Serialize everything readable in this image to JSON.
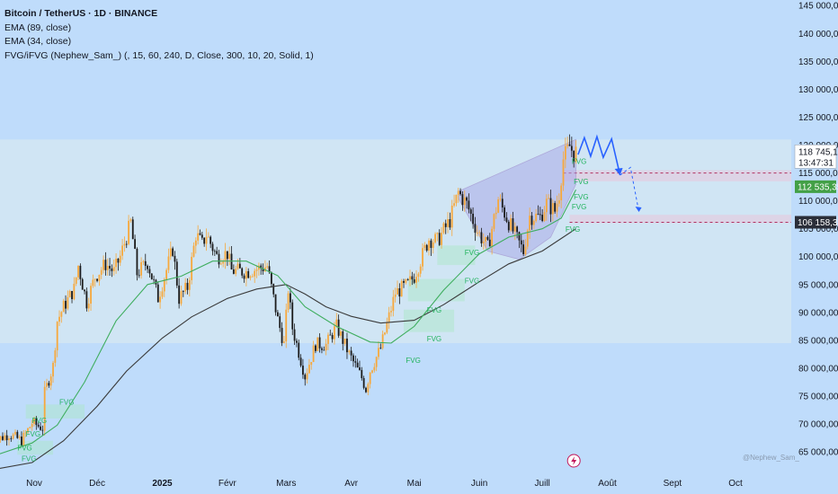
{
  "legend": {
    "title": "Bitcoin / TetherUS · 1D · BINANCE",
    "ema1": "EMA (89, close)",
    "ema2": "EMA (34, close)",
    "fvg": "FVG/iFVG (Nephew_Sam_) (, 15, 60, 240, D, Close, 300, 10, 20, Solid, 1)"
  },
  "watermark": "@Nephew_Sam_",
  "colors": {
    "background": "#bfdcfb",
    "up": "#f7a83b",
    "down": "#1b1b1b",
    "ema89": "#3a3a3a",
    "ema34": "#3fae5f",
    "fvg_text": "#22b35e",
    "projection": "#2962ff",
    "price_badge": "#ffffff",
    "support_badge": "#43a047",
    "level_badge": "#2a2e39"
  },
  "chart_data": {
    "type": "candlestick",
    "title": "Bitcoin / TetherUS · 1D · BINANCE",
    "ylim": [
      61000,
      146000
    ],
    "yticks": [
      65000,
      70000,
      75000,
      80000,
      85000,
      90000,
      95000,
      100000,
      105000,
      110000,
      115000,
      120000,
      125000,
      130000,
      135000,
      140000,
      145000
    ],
    "ytick_labels": [
      "65 000,00",
      "70 000,00",
      "75 000,00",
      "80 000,00",
      "85 000,00",
      "90 000,00",
      "95 000,00",
      "100 000,00",
      "105 000,00",
      "110 000,00",
      "115 000,00",
      "120 000,00",
      "125 000,00",
      "130 000,00",
      "135 000,00",
      "140 000,00",
      "145 000,00"
    ],
    "xticks": [
      {
        "date": "2024-11-01",
        "label": "Nov"
      },
      {
        "date": "2024-12-01",
        "label": "Déc"
      },
      {
        "date": "2025-01-01",
        "label": "2025"
      },
      {
        "date": "2025-02-01",
        "label": "Févr"
      },
      {
        "date": "2025-03-01",
        "label": "Mars"
      },
      {
        "date": "2025-04-01",
        "label": "Avr"
      },
      {
        "date": "2025-05-01",
        "label": "Mai"
      },
      {
        "date": "2025-06-01",
        "label": "Juin"
      },
      {
        "date": "2025-07-01",
        "label": "Juill"
      },
      {
        "date": "2025-08-01",
        "label": "Août"
      },
      {
        "date": "2025-09-01",
        "label": "Sept"
      },
      {
        "date": "2025-10-01",
        "label": "Oct"
      }
    ],
    "close_series": [
      [
        "2024-10-12",
        66800
      ],
      [
        "2024-10-20",
        68200
      ],
      [
        "2024-10-26",
        67000
      ],
      [
        "2024-10-31",
        70200
      ],
      [
        "2024-11-05",
        69300
      ],
      [
        "2024-11-06",
        75600
      ],
      [
        "2024-11-10",
        80400
      ],
      [
        "2024-11-12",
        88500
      ],
      [
        "2024-11-15",
        91000
      ],
      [
        "2024-11-20",
        94200
      ],
      [
        "2024-11-22",
        98400
      ],
      [
        "2024-11-26",
        91800
      ],
      [
        "2024-11-30",
        96400
      ],
      [
        "2024-12-05",
        98700
      ],
      [
        "2024-12-09",
        97300
      ],
      [
        "2024-12-12",
        100000
      ],
      [
        "2024-12-17",
        106100
      ],
      [
        "2024-12-20",
        97000
      ],
      [
        "2024-12-25",
        99000
      ],
      [
        "2024-12-30",
        92600
      ],
      [
        "2025-01-06",
        101400
      ],
      [
        "2025-01-09",
        92500
      ],
      [
        "2025-01-13",
        94500
      ],
      [
        "2025-01-17",
        104000
      ],
      [
        "2025-01-20",
        102200
      ],
      [
        "2025-01-22",
        104000
      ],
      [
        "2025-01-27",
        100000
      ],
      [
        "2025-02-01",
        100600
      ],
      [
        "2025-02-03",
        97500
      ],
      [
        "2025-02-10",
        97300
      ],
      [
        "2025-02-20",
        98300
      ],
      [
        "2025-02-25",
        88700
      ],
      [
        "2025-02-28",
        84300
      ],
      [
        "2025-03-02",
        94200
      ],
      [
        "2025-03-04",
        87200
      ],
      [
        "2025-03-10",
        78600
      ],
      [
        "2025-03-15",
        84300
      ],
      [
        "2025-03-20",
        84200
      ],
      [
        "2025-03-25",
        87500
      ],
      [
        "2025-03-31",
        82500
      ],
      [
        "2025-04-06",
        78300
      ],
      [
        "2025-04-08",
        76300
      ],
      [
        "2025-04-10",
        79600
      ],
      [
        "2025-04-15",
        83600
      ],
      [
        "2025-04-22",
        93500
      ],
      [
        "2025-04-28",
        95000
      ],
      [
        "2025-05-01",
        96500
      ],
      [
        "2025-05-08",
        103200
      ],
      [
        "2025-05-12",
        102800
      ],
      [
        "2025-05-18",
        106500
      ],
      [
        "2025-05-22",
        111500
      ],
      [
        "2025-05-26",
        109400
      ],
      [
        "2025-05-31",
        104600
      ],
      [
        "2025-06-05",
        101600
      ],
      [
        "2025-06-10",
        110300
      ],
      [
        "2025-06-17",
        104600
      ],
      [
        "2025-06-22",
        100900
      ],
      [
        "2025-06-25",
        107300
      ],
      [
        "2025-06-30",
        107100
      ],
      [
        "2025-07-03",
        109600
      ],
      [
        "2025-07-07",
        108200
      ],
      [
        "2025-07-09",
        111300
      ],
      [
        "2025-07-11",
        117500
      ],
      [
        "2025-07-14",
        119800
      ],
      [
        "2025-07-16",
        118500
      ],
      [
        "2025-07-17",
        118745
      ]
    ],
    "ema34_series": [
      [
        "2024-10-12",
        64200
      ],
      [
        "2024-10-31",
        66600
      ],
      [
        "2024-11-12",
        69800
      ],
      [
        "2024-11-25",
        77500
      ],
      [
        "2024-12-10",
        88500
      ],
      [
        "2024-12-25",
        95000
      ],
      [
        "2025-01-10",
        96500
      ],
      [
        "2025-01-25",
        99200
      ],
      [
        "2025-02-10",
        99200
      ],
      [
        "2025-02-25",
        96600
      ],
      [
        "2025-03-10",
        91000
      ],
      [
        "2025-03-25",
        87500
      ],
      [
        "2025-04-10",
        84700
      ],
      [
        "2025-04-20",
        84500
      ],
      [
        "2025-05-01",
        87500
      ],
      [
        "2025-05-15",
        94000
      ],
      [
        "2025-06-01",
        100500
      ],
      [
        "2025-06-15",
        103500
      ],
      [
        "2025-07-01",
        105000
      ],
      [
        "2025-07-10",
        106900
      ],
      [
        "2025-07-17",
        112000
      ]
    ],
    "ema89_series": [
      [
        "2024-10-12",
        61800
      ],
      [
        "2024-10-31",
        63100
      ],
      [
        "2024-11-15",
        67000
      ],
      [
        "2024-12-01",
        73200
      ],
      [
        "2024-12-15",
        79500
      ],
      [
        "2025-01-01",
        85400
      ],
      [
        "2025-01-15",
        89200
      ],
      [
        "2025-02-01",
        92500
      ],
      [
        "2025-02-15",
        94200
      ],
      [
        "2025-03-01",
        95000
      ],
      [
        "2025-03-10",
        93300
      ],
      [
        "2025-03-20",
        91000
      ],
      [
        "2025-04-01",
        89300
      ],
      [
        "2025-04-15",
        88100
      ],
      [
        "2025-05-01",
        88600
      ],
      [
        "2025-05-15",
        91400
      ],
      [
        "2025-06-01",
        95500
      ],
      [
        "2025-06-15",
        98700
      ],
      [
        "2025-07-01",
        101000
      ],
      [
        "2025-07-17",
        105000
      ]
    ],
    "fvg_labels": [
      {
        "date": "2024-10-28",
        "price": 67800,
        "text": "FVG"
      },
      {
        "date": "2024-10-24",
        "price": 65300,
        "text": "FVG"
      },
      {
        "date": "2024-10-26",
        "price": 63300,
        "text": "FVG"
      },
      {
        "date": "2024-11-13",
        "price": 73500,
        "text": "FVG"
      },
      {
        "date": "2024-10-31",
        "price": 70200,
        "text": "FVG"
      },
      {
        "date": "2025-04-27",
        "price": 81000,
        "text": "FVG"
      },
      {
        "date": "2025-05-07",
        "price": 90000,
        "text": "FVG"
      },
      {
        "date": "2025-05-07",
        "price": 84800,
        "text": "FVG"
      },
      {
        "date": "2025-05-25",
        "price": 100300,
        "text": "FVG"
      },
      {
        "date": "2025-05-25",
        "price": 95200,
        "text": "FVG"
      },
      {
        "date": "2025-07-15",
        "price": 116600,
        "text": "FVG"
      },
      {
        "date": "2025-07-16",
        "price": 113000,
        "text": "FVG"
      },
      {
        "date": "2025-07-16",
        "price": 110300,
        "text": "FVG"
      },
      {
        "date": "2025-07-15",
        "price": 108500,
        "text": "FVG"
      },
      {
        "date": "2025-07-12",
        "price": 104500,
        "text": "FVG"
      }
    ],
    "range_box": {
      "top": 121000,
      "bottom": 84500
    },
    "rising_wedge": {
      "x1": "2025-05-22",
      "x2": "2025-07-17",
      "lower_start": 110500,
      "lower_end": 113000,
      "upper_start": 111700,
      "upper_end": 121000
    },
    "levels": [
      {
        "price": 115000,
        "style": "dashed",
        "color": "#b03060",
        "band_top": 115500,
        "band_bottom": 113500,
        "start": "2025-07-11"
      },
      {
        "price": 106158.37,
        "style": "dashed",
        "color": "#b03060",
        "band_top": 107500,
        "band_bottom": 106000,
        "start": "2025-07-14"
      }
    ],
    "projection_zigzag": [
      [
        "2025-07-18",
        118300
      ],
      [
        "2025-07-21",
        121300
      ],
      [
        "2025-07-24",
        118000
      ],
      [
        "2025-07-27",
        121500
      ],
      [
        "2025-07-30",
        117800
      ],
      [
        "2025-08-03",
        121100
      ],
      [
        "2025-08-07",
        114600
      ]
    ],
    "projection_dashed": [
      [
        "2025-08-07",
        114600
      ],
      [
        "2025-08-12",
        116000
      ],
      [
        "2025-08-16",
        108000
      ]
    ],
    "current_price": {
      "value": 118745.14,
      "label": "118 745,14",
      "countdown": "13:47:31"
    },
    "support_badge": {
      "value": 112535.35,
      "label": "112 535,35"
    },
    "level_badge": {
      "value": 106158.37,
      "label": "106 158,37"
    },
    "event_marker": {
      "date": "2025-07-16",
      "icon": "lightning-icon"
    }
  }
}
